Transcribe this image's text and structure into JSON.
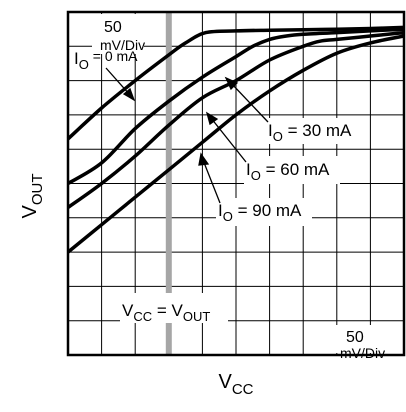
{
  "chart_data": {
    "type": "line",
    "title": "",
    "xlabel": {
      "main": "V",
      "sub": "CC"
    },
    "ylabel": {
      "main": "V",
      "sub": "OUT"
    },
    "x_scale_label": {
      "value": "50",
      "unit": "mV/Div"
    },
    "y_scale_label": {
      "value": "50",
      "unit": "mV/Div"
    },
    "xlim": [
      0,
      10
    ],
    "ylim": [
      0,
      10
    ],
    "grid": true,
    "legend": "none",
    "colors": {
      "curve": "#000000",
      "grid": "#000000",
      "marker_line": "#a6a6a6"
    },
    "reference_line": {
      "x": 3.0,
      "label": {
        "a": "V",
        "a_sub": "CC",
        "eq": " = V",
        "b_sub": "OUT"
      }
    },
    "series": [
      {
        "name": "IO = 0 mA",
        "label": {
          "main": "I",
          "sub": "O",
          "rest": " = 0 mA"
        },
        "x": [
          0,
          1,
          2,
          3,
          3.5,
          4.1,
          5,
          6,
          7,
          8,
          9,
          10
        ],
        "y": [
          6.3,
          7.2,
          8.0,
          8.75,
          9.1,
          9.4,
          9.45,
          9.47,
          9.48,
          9.5,
          9.52,
          9.55
        ]
      },
      {
        "name": "IO = 30 mA",
        "label": {
          "main": "I",
          "sub": "O",
          "rest": " = 30 mA"
        },
        "x": [
          0,
          1,
          2,
          3,
          4,
          5,
          5.5,
          6,
          6.5,
          7,
          8,
          9,
          10
        ],
        "y": [
          5.0,
          5.6,
          6.6,
          7.4,
          8.1,
          8.7,
          9.0,
          9.2,
          9.3,
          9.35,
          9.4,
          9.45,
          9.5
        ]
      },
      {
        "name": "IO = 60 mA",
        "label": {
          "main": "I",
          "sub": "O",
          "rest": " = 60 mA"
        },
        "x": [
          0,
          1,
          2,
          3,
          4,
          5,
          6,
          7,
          7.5,
          8,
          9,
          10
        ],
        "y": [
          4.3,
          5.0,
          5.8,
          6.7,
          7.5,
          8.0,
          8.6,
          9.0,
          9.15,
          9.2,
          9.3,
          9.4
        ]
      },
      {
        "name": "IO = 90 mA",
        "label": {
          "main": "I",
          "sub": "O",
          "rest": " = 90 mA"
        },
        "x": [
          0,
          1,
          2,
          3,
          4,
          5,
          6,
          7,
          8,
          9,
          10
        ],
        "y": [
          3.0,
          3.8,
          4.6,
          5.4,
          6.2,
          7.0,
          7.7,
          8.3,
          8.8,
          9.1,
          9.3
        ]
      }
    ]
  }
}
